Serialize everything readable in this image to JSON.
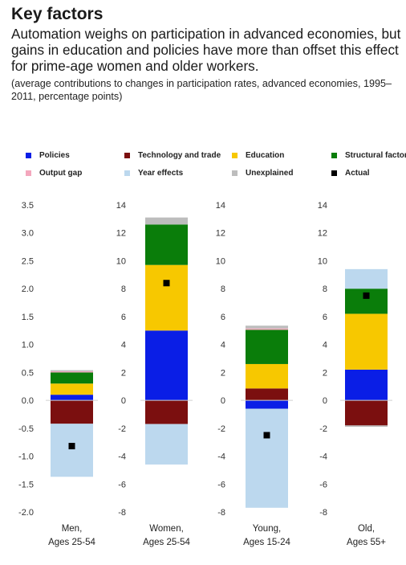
{
  "title": "Key factors",
  "subtitle": "Automation weighs on participation in advanced economies, but gains in education and policies have more than offset this effect for prime-age women and older workers.",
  "note": "(average contributions to changes in participation rates, advanced economies, 1995–2011, percentage points)",
  "chart_data": {
    "type": "bar",
    "stacked": true,
    "legend_position": "top",
    "grid": false,
    "series": [
      {
        "name": "Policies",
        "color": "#0a1ee6",
        "values": [
          0.1,
          5.0,
          -0.6,
          2.2
        ]
      },
      {
        "name": "Technology and trade",
        "color": "#7b0f0f",
        "values": [
          -0.42,
          -1.7,
          0.85,
          -1.8
        ]
      },
      {
        "name": "Education",
        "color": "#f7c800",
        "values": [
          0.2,
          4.7,
          1.75,
          4.0
        ]
      },
      {
        "name": "Structural factors",
        "color": "#0a7d0a",
        "values": [
          0.2,
          2.9,
          2.45,
          1.8
        ]
      },
      {
        "name": "Output gap",
        "color": "#f4a7bd",
        "values": [
          0.02,
          0.0,
          0.1,
          0.0
        ]
      },
      {
        "name": "Year effects",
        "color": "#bcd8ee",
        "values": [
          -0.95,
          -2.9,
          -7.1,
          1.4
        ]
      },
      {
        "name": "Unexplained",
        "color": "#bdbdbd",
        "values": [
          0.02,
          0.5,
          0.2,
          -0.1
        ]
      }
    ],
    "actual": {
      "name": "Actual",
      "color": "#000000",
      "values": [
        -0.82,
        8.4,
        -2.5,
        7.5
      ]
    },
    "panels": [
      {
        "category": "Men,\nAges 25-54",
        "ylim": [
          -2.0,
          3.5
        ],
        "ticks": [
          "3.5",
          "3.0",
          "2.5",
          "2.0",
          "1.5",
          "1.0",
          "0.5",
          "0.0",
          "-0.5",
          "-1.0",
          "-1.5",
          "-2.0"
        ]
      },
      {
        "category": "Women,\nAges 25-54",
        "ylim": [
          -8,
          14
        ],
        "ticks": [
          "14",
          "12",
          "10",
          "8",
          "6",
          "4",
          "2",
          "0",
          "-2",
          "-4",
          "-6",
          "-8"
        ]
      },
      {
        "category": "Young,\nAges 15-24",
        "ylim": [
          -8,
          14
        ],
        "ticks": [
          "14",
          "12",
          "10",
          "8",
          "6",
          "4",
          "2",
          "0",
          "-2",
          "-4",
          "-6",
          "-8"
        ]
      },
      {
        "category": "Old,\nAges 55+",
        "ylim": [
          -8,
          14
        ],
        "ticks": [
          "14",
          "12",
          "10",
          "8",
          "6",
          "4",
          "2",
          "0",
          "-2",
          "-4",
          "-6",
          "-8"
        ]
      }
    ]
  }
}
